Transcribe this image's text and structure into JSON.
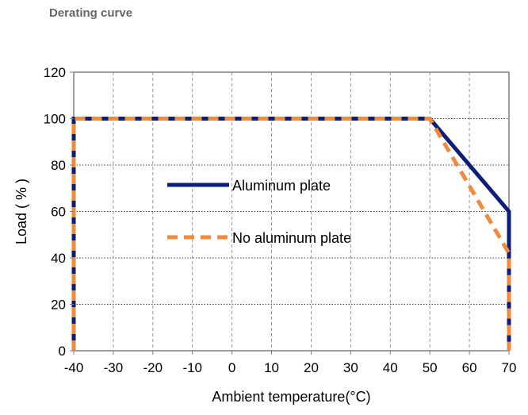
{
  "heading": "Derating curve",
  "chart_data": {
    "type": "line",
    "title": "",
    "xlabel": "Ambient temperature(°C)",
    "ylabel": "Load ( % )",
    "xlim": [
      -40,
      70
    ],
    "ylim": [
      0,
      120
    ],
    "xticks": [
      -40,
      -30,
      -20,
      -10,
      0,
      10,
      20,
      30,
      40,
      50,
      60,
      70
    ],
    "yticks": [
      0,
      20,
      40,
      60,
      80,
      100,
      120
    ],
    "grid": true,
    "legend_position": "center-left inside plot",
    "series": [
      {
        "name": "Aluminum plate",
        "color": "#0b1f7a",
        "style": "solid",
        "points": [
          [
            -40,
            0
          ],
          [
            -40,
            100
          ],
          [
            50,
            100
          ],
          [
            70,
            60
          ],
          [
            70,
            0
          ]
        ]
      },
      {
        "name": "No aluminum plate",
        "color": "#f08a3c",
        "style": "dashed",
        "points": [
          [
            -40,
            0
          ],
          [
            -40,
            100
          ],
          [
            50,
            100
          ],
          [
            70,
            42
          ],
          [
            70,
            0
          ]
        ]
      }
    ]
  }
}
